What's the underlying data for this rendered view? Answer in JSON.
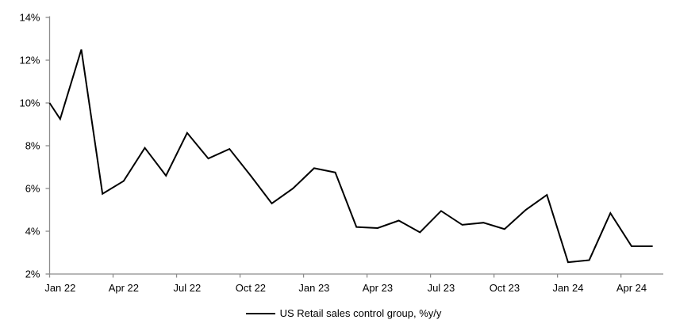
{
  "chart_data": {
    "type": "line",
    "title": "",
    "xlabel": "",
    "ylabel": "",
    "categories": [
      "Jan 22",
      "Feb 22",
      "Mar 22",
      "Apr 22",
      "May 22",
      "Jun 22",
      "Jul 22",
      "Aug 22",
      "Sep 22",
      "Oct 22",
      "Nov 22",
      "Dec 22",
      "Jan 23",
      "Feb 23",
      "Mar 23",
      "Apr 23",
      "May 23",
      "Jun 23",
      "Jul 23",
      "Aug 23",
      "Sep 23",
      "Oct 23",
      "Nov 23",
      "Dec 23",
      "Jan 24",
      "Feb 24",
      "Mar 24",
      "Apr 24",
      "May 24"
    ],
    "series": [
      {
        "name": "US Retail sales control group, %y/y",
        "color": "#000000",
        "values": [
          9.25,
          12.5,
          5.75,
          6.35,
          7.9,
          6.6,
          8.6,
          7.4,
          7.85,
          6.6,
          5.3,
          6.0,
          6.95,
          6.75,
          4.2,
          4.15,
          4.5,
          3.95,
          4.95,
          4.3,
          4.4,
          4.1,
          5.0,
          5.7,
          2.55,
          2.65,
          4.85,
          3.3,
          3.3
        ]
      }
    ],
    "entry_point_value": 10.0,
    "x_tick_labels": [
      "Jan 22",
      "Apr 22",
      "Jul 22",
      "Oct 22",
      "Jan 23",
      "Apr 23",
      "Jul 23",
      "Oct 23",
      "Jan 24",
      "Apr 24"
    ],
    "x_tick_label_every": 3,
    "y_tick_values": [
      2,
      4,
      6,
      8,
      10,
      12,
      14
    ],
    "y_tick_labels": [
      "2%",
      "4%",
      "6%",
      "8%",
      "10%",
      "12%",
      "14%"
    ],
    "ylim": [
      2,
      14
    ],
    "grid": "off",
    "legend_position": "bottom-center",
    "colors": {
      "axis": "#8c8c8c",
      "line": "#000000",
      "text": "#000000",
      "background": "#ffffff"
    }
  }
}
